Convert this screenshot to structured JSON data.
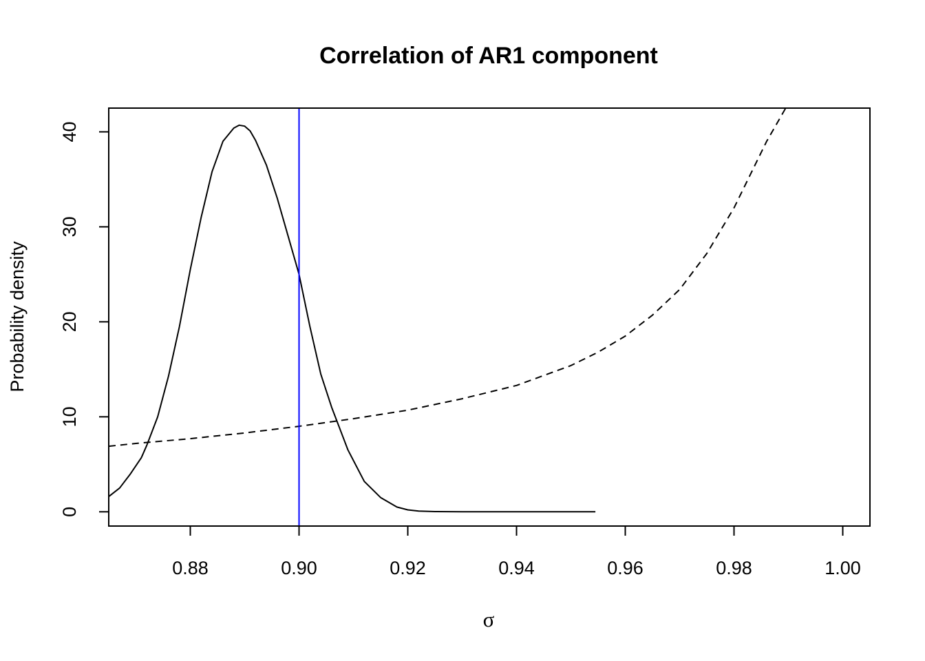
{
  "chart_data": {
    "type": "line",
    "title": "Correlation of AR1 component",
    "xlabel": "σ",
    "ylabel": "Probability density",
    "xlim": [
      0.865,
      1.005
    ],
    "ylim": [
      -1.5,
      42.5
    ],
    "x_ticks": [
      0.88,
      0.9,
      0.92,
      0.94,
      0.96,
      0.98,
      1.0
    ],
    "x_tick_labels": [
      "0.88",
      "0.90",
      "0.92",
      "0.94",
      "0.96",
      "0.98",
      "1.00"
    ],
    "y_ticks": [
      0,
      10,
      20,
      30,
      40
    ],
    "y_tick_labels": [
      "0",
      "10",
      "20",
      "30",
      "40"
    ],
    "grid": false,
    "legend": "none",
    "series": [
      {
        "style": "solid",
        "color": "#000000",
        "x": [
          0.865,
          0.867,
          0.869,
          0.871,
          0.872,
          0.874,
          0.876,
          0.878,
          0.88,
          0.882,
          0.884,
          0.886,
          0.888,
          0.889,
          0.89,
          0.891,
          0.892,
          0.894,
          0.896,
          0.898,
          0.9,
          0.902,
          0.904,
          0.906,
          0.909,
          0.912,
          0.915,
          0.918,
          0.92,
          0.922,
          0.925,
          0.93,
          0.94,
          0.95,
          0.9545
        ],
        "y": [
          1.6,
          2.5,
          4.0,
          5.7,
          7.0,
          10.0,
          14.3,
          19.5,
          25.5,
          31.0,
          35.8,
          39.0,
          40.4,
          40.7,
          40.6,
          40.1,
          39.1,
          36.5,
          33.0,
          29.0,
          25.0,
          19.5,
          14.5,
          11.0,
          6.5,
          3.2,
          1.5,
          0.5,
          0.2,
          0.08,
          0.02,
          0.0,
          0.0,
          0.0,
          0.0
        ]
      },
      {
        "style": "dashed",
        "color": "#000000",
        "x": [
          0.865,
          0.87,
          0.88,
          0.89,
          0.9,
          0.91,
          0.92,
          0.93,
          0.94,
          0.95,
          0.955,
          0.96,
          0.965,
          0.97,
          0.975,
          0.98,
          0.983,
          0.986,
          0.9885,
          0.99
        ],
        "y": [
          6.9,
          7.2,
          7.7,
          8.3,
          9.0,
          9.8,
          10.7,
          11.9,
          13.3,
          15.4,
          16.8,
          18.5,
          20.7,
          23.4,
          27.2,
          32.0,
          35.5,
          39.0,
          41.5,
          43.0
        ]
      }
    ],
    "reference_lines": [
      {
        "orientation": "vertical",
        "x": 0.9,
        "color": "#0000ff"
      }
    ]
  }
}
